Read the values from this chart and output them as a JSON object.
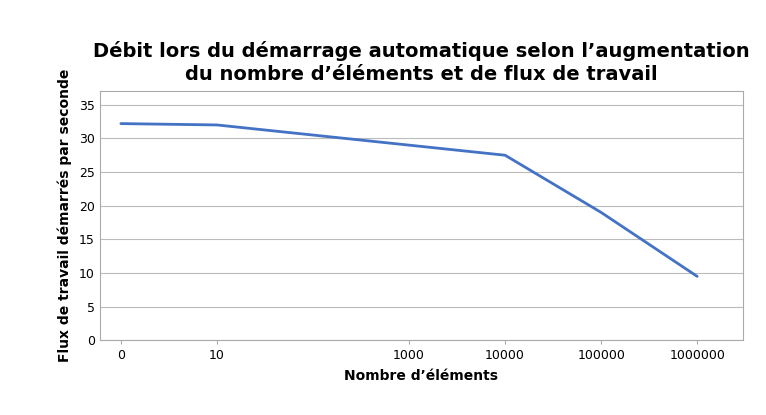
{
  "title": "Débit lors du démarrage automatique selon l’augmentation\ndu nombre d’éléments et de flux de travail",
  "xlabel": "Nombre d’éléments",
  "ylabel": "Flux de travail démarrés par seconde",
  "x_values": [
    1,
    10,
    1000,
    10000,
    100000,
    1000000
  ],
  "y_values": [
    32.2,
    32.0,
    29.0,
    27.5,
    19.0,
    9.5
  ],
  "x_tick_positions": [
    1,
    10,
    1000,
    10000,
    100000,
    1000000
  ],
  "x_tick_labels": [
    "0",
    "10",
    "1000",
    "10000",
    "100000",
    "1000000"
  ],
  "ylim": [
    0,
    37
  ],
  "yticks": [
    0,
    5,
    10,
    15,
    20,
    25,
    30,
    35
  ],
  "line_color": "#4472C4",
  "line_width": 2.0,
  "background_color": "#FFFFFF",
  "grid_color": "#BBBBBB",
  "spine_color": "#AAAAAA",
  "title_fontsize": 14,
  "axis_label_fontsize": 10,
  "tick_fontsize": 9
}
